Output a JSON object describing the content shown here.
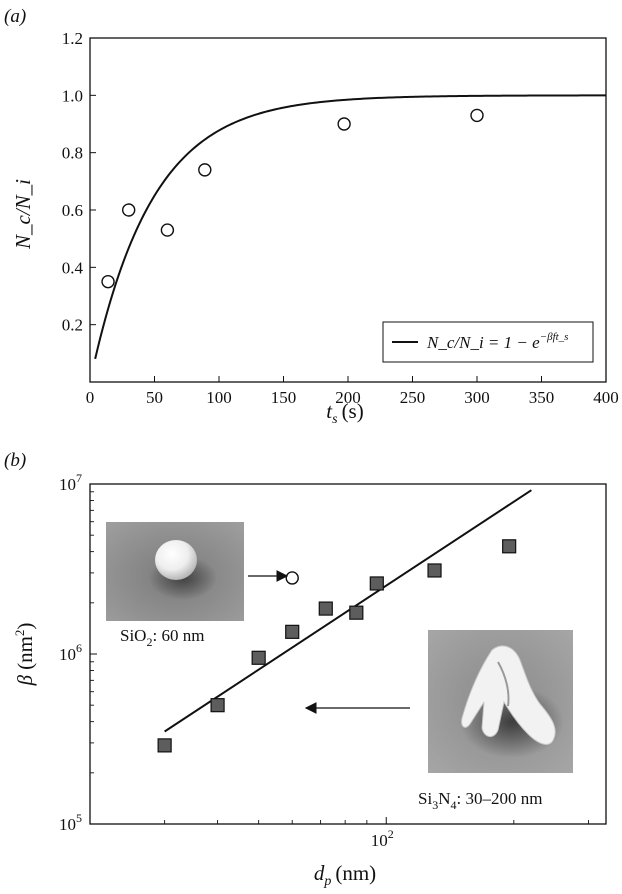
{
  "chart_data": [
    {
      "panel_label": "(a)",
      "type": "scatter",
      "xlabel_var": "t",
      "xlabel_sub": "s",
      "xlabel_unit": "(s)",
      "ylabel": "N_c/N_i",
      "xlim": [
        0,
        400
      ],
      "ylim": [
        0,
        1.2
      ],
      "xticks": [
        "0",
        "50",
        "100",
        "150",
        "200",
        "250",
        "300",
        "350",
        "400"
      ],
      "yticks": [
        "0.2",
        "0.4",
        "0.6",
        "0.8",
        "1.0",
        "1.2"
      ],
      "series": [
        {
          "type": "scatter",
          "marker": "open-circle",
          "points": [
            {
              "x": 14,
              "y": 0.35
            },
            {
              "x": 30,
              "y": 0.6
            },
            {
              "x": 60,
              "y": 0.53
            },
            {
              "x": 89,
              "y": 0.74
            },
            {
              "x": 197,
              "y": 0.9
            },
            {
              "x": 300,
              "y": 0.93
            }
          ]
        },
        {
          "type": "line",
          "name": "N_c/N_i = 1 − e^(−βf t_s)",
          "model": "1 - exp(-k*x)",
          "k": 0.021,
          "x_range": [
            4,
            400
          ]
        }
      ],
      "legend": {
        "placement": "bottom-right",
        "text_main": "N_c/N_i = 1 − e",
        "text_sup": "−βft_s"
      },
      "colors": {
        "line": "#111111",
        "marker_edge": "#111111",
        "marker_fill": "#ffffff"
      }
    },
    {
      "panel_label": "(b)",
      "type": "scatter",
      "xscale": "log",
      "yscale": "log",
      "xlabel_var": "d",
      "xlabel_sub": "p",
      "xlabel_unit": "(nm)",
      "ylabel_var": "β",
      "ylabel_unit": "(nm",
      "ylabel_sup": "2",
      "xlim": [
        20,
        330
      ],
      "ylim": [
        100000,
        10000000
      ],
      "xticks": [
        {
          "value": 100,
          "base": "10",
          "exp": "2"
        }
      ],
      "yticks": [
        {
          "value": 100000,
          "base": "10",
          "exp": "5"
        },
        {
          "value": 1000000,
          "base": "10",
          "exp": "6"
        },
        {
          "value": 10000000,
          "base": "10",
          "exp": "7"
        }
      ],
      "series": [
        {
          "type": "scatter",
          "marker": "filled-square",
          "name": "Si3N4",
          "points": [
            {
              "x": 30,
              "y": 290000
            },
            {
              "x": 40,
              "y": 500000
            },
            {
              "x": 50,
              "y": 950000
            },
            {
              "x": 60,
              "y": 1350000
            },
            {
              "x": 72,
              "y": 1850000
            },
            {
              "x": 85,
              "y": 1750000
            },
            {
              "x": 95,
              "y": 2600000
            },
            {
              "x": 130,
              "y": 3100000
            },
            {
              "x": 195,
              "y": 4300000
            }
          ]
        },
        {
          "type": "scatter",
          "marker": "open-circle",
          "name": "SiO2",
          "points": [
            {
              "x": 60,
              "y": 2800000
            }
          ]
        },
        {
          "type": "line",
          "model": "fit",
          "from": {
            "x": 30,
            "y": 350000
          },
          "to": {
            "x": 220,
            "y": 9200000
          }
        }
      ],
      "annotations": [
        {
          "id": "sio2",
          "pre": "SiO",
          "sub": "2",
          "post": ": 60 nm"
        },
        {
          "id": "si3n4",
          "parts": [
            "Si",
            "3",
            "N",
            "4",
            ": 30–200 nm"
          ]
        }
      ],
      "colors": {
        "square_fill": "#5d5d5d",
        "line": "#111111"
      }
    }
  ]
}
